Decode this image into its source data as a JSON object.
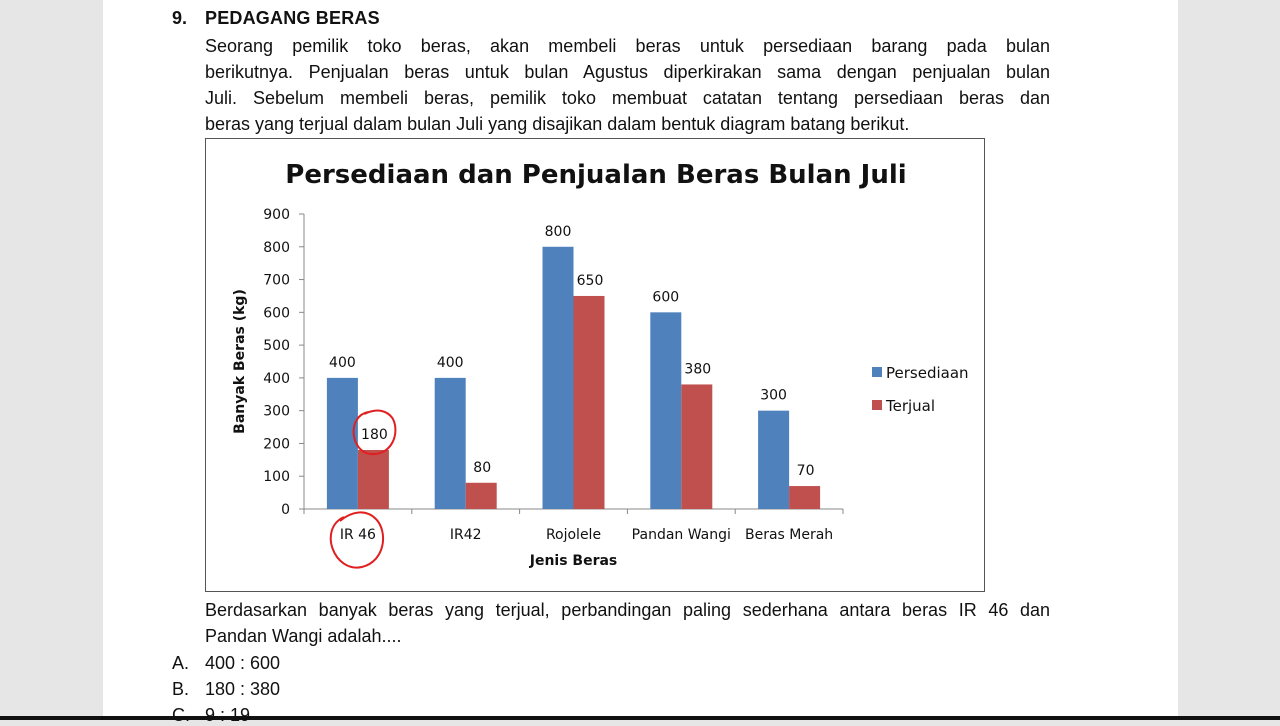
{
  "question": {
    "number": "9.",
    "title": "PEDAGANG BERAS",
    "paragraph_lines": [
      "Seorang pemilik toko beras, akan membeli beras untuk persediaan barang pada bulan",
      "berikutnya. Penjualan beras untuk bulan Agustus diperkirakan sama dengan penjualan bulan",
      "Juli. Sebelum membeli beras, pemilik toko membuat catatan tentang persediaan beras dan",
      "beras yang terjual dalam bulan Juli yang disajikan dalam bentuk diagram batang berikut."
    ],
    "prompt_lines": [
      "Berdasarkan banyak beras yang terjual, perbandingan paling sederhana antara beras IR 46 dan",
      "Pandan Wangi adalah...."
    ],
    "options": [
      {
        "letter": "A.",
        "text": "400 : 600"
      },
      {
        "letter": "B.",
        "text": "180 : 380"
      },
      {
        "letter": "C.",
        "text": "9 : 19"
      }
    ]
  },
  "chart_data": {
    "type": "bar",
    "title": "Persediaan dan Penjualan Beras Bulan Juli",
    "xlabel": "Jenis Beras",
    "ylabel": "Banyak Beras (kg)",
    "categories": [
      "IR 46",
      "IR42",
      "Rojolele",
      "Pandan Wangi",
      "Beras Merah"
    ],
    "series": [
      {
        "name": "Persediaan",
        "color": "#4f81bd",
        "values": [
          400,
          400,
          800,
          600,
          300
        ]
      },
      {
        "name": "Terjual",
        "color": "#c0504d",
        "values": [
          180,
          80,
          650,
          380,
          70
        ]
      }
    ],
    "ylim": [
      0,
      900
    ],
    "yticks": [
      0,
      100,
      200,
      300,
      400,
      500,
      600,
      700,
      800,
      900
    ],
    "grid": false,
    "legend": "right",
    "data_labels": true,
    "annotations": [
      "handwritten red circle around 180 (IR 46 Terjual)",
      "handwritten red circle around IR 46"
    ]
  }
}
